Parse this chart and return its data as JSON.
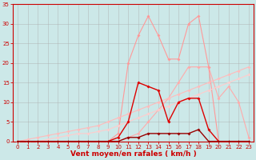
{
  "bg_color": "#cce8e8",
  "grid_color": "#aaaaaa",
  "xlabel": "Vent moyen/en rafales ( km/h )",
  "xlabel_color": "#cc0000",
  "xlim": [
    -0.5,
    23.5
  ],
  "ylim": [
    0,
    35
  ],
  "yticks": [
    0,
    5,
    10,
    15,
    20,
    25,
    30,
    35
  ],
  "xticks": [
    0,
    1,
    2,
    3,
    4,
    5,
    6,
    7,
    8,
    9,
    10,
    11,
    12,
    13,
    14,
    15,
    16,
    17,
    18,
    19,
    20,
    21,
    22,
    23
  ],
  "series": [
    {
      "name": "diagonal_upper_light",
      "color": "#ffaaaa",
      "linewidth": 0.8,
      "marker": "D",
      "markersize": 2.0,
      "x": [
        0,
        1,
        2,
        3,
        4,
        5,
        6,
        7,
        8,
        9,
        10,
        11,
        12,
        13,
        14,
        15,
        16,
        17,
        18,
        19,
        20,
        21,
        22,
        23
      ],
      "y": [
        0,
        0,
        0,
        0,
        0,
        0,
        0,
        0,
        0,
        0,
        0,
        1,
        2,
        5,
        8,
        11,
        15,
        19,
        19,
        19,
        11,
        14,
        10,
        1
      ]
    },
    {
      "name": "peaked_light_pink",
      "color": "#ff9999",
      "linewidth": 0.8,
      "marker": "D",
      "markersize": 2.0,
      "x": [
        0,
        1,
        2,
        3,
        4,
        5,
        6,
        7,
        8,
        9,
        10,
        11,
        12,
        13,
        14,
        15,
        16,
        17,
        18,
        19,
        20,
        21,
        22,
        23
      ],
      "y": [
        0,
        0,
        0,
        0,
        0,
        0,
        0,
        0,
        0,
        0,
        2,
        20,
        27,
        32,
        27,
        21,
        21,
        30,
        32,
        19,
        0,
        0,
        0,
        0
      ]
    },
    {
      "name": "diagonal_lower_light",
      "color": "#ffbbbb",
      "linewidth": 0.8,
      "marker": "D",
      "markersize": 2.0,
      "x": [
        0,
        1,
        2,
        3,
        4,
        5,
        6,
        7,
        8,
        9,
        10,
        11,
        12,
        13,
        14,
        15,
        16,
        17,
        18,
        19,
        20,
        21,
        22,
        23
      ],
      "y": [
        0,
        0.5,
        1,
        1.5,
        2,
        2.5,
        3,
        3.5,
        4,
        5,
        6,
        7,
        8,
        9,
        10,
        11,
        12,
        13,
        14,
        15,
        16,
        17,
        18,
        19
      ]
    },
    {
      "name": "diagonal_lowest",
      "color": "#ffcccc",
      "linewidth": 0.8,
      "marker": "D",
      "markersize": 2.0,
      "x": [
        0,
        1,
        2,
        3,
        4,
        5,
        6,
        7,
        8,
        9,
        10,
        11,
        12,
        13,
        14,
        15,
        16,
        17,
        18,
        19,
        20,
        21,
        22,
        23
      ],
      "y": [
        0,
        0,
        0,
        0.5,
        1,
        1.5,
        2,
        2,
        2.5,
        3,
        4,
        5,
        6,
        7,
        8,
        9,
        10,
        11,
        12,
        13,
        14,
        15,
        16,
        17
      ]
    },
    {
      "name": "peaked_dark_red",
      "color": "#dd0000",
      "linewidth": 1.0,
      "marker": "D",
      "markersize": 2.0,
      "x": [
        0,
        1,
        2,
        3,
        4,
        5,
        6,
        7,
        8,
        9,
        10,
        11,
        12,
        13,
        14,
        15,
        16,
        17,
        18,
        19,
        20,
        21,
        22,
        23
      ],
      "y": [
        0,
        0,
        0,
        0,
        0,
        0,
        0,
        0,
        0,
        0,
        1,
        5,
        15,
        14,
        13,
        5,
        10,
        11,
        11,
        3,
        0,
        0,
        0,
        0
      ]
    },
    {
      "name": "flat_dark_red",
      "color": "#990000",
      "linewidth": 1.0,
      "marker": "D",
      "markersize": 2.0,
      "x": [
        0,
        1,
        2,
        3,
        4,
        5,
        6,
        7,
        8,
        9,
        10,
        11,
        12,
        13,
        14,
        15,
        16,
        17,
        18,
        19,
        20,
        21,
        22,
        23
      ],
      "y": [
        0,
        0,
        0,
        0,
        0,
        0,
        0,
        0,
        0,
        0,
        0,
        1,
        1,
        2,
        2,
        2,
        2,
        2,
        3,
        0,
        0,
        0,
        0,
        0
      ]
    }
  ],
  "tick_fontsize": 5.0,
  "label_fontsize": 6.5,
  "tick_color": "#cc0000",
  "axis_color": "#cc0000"
}
